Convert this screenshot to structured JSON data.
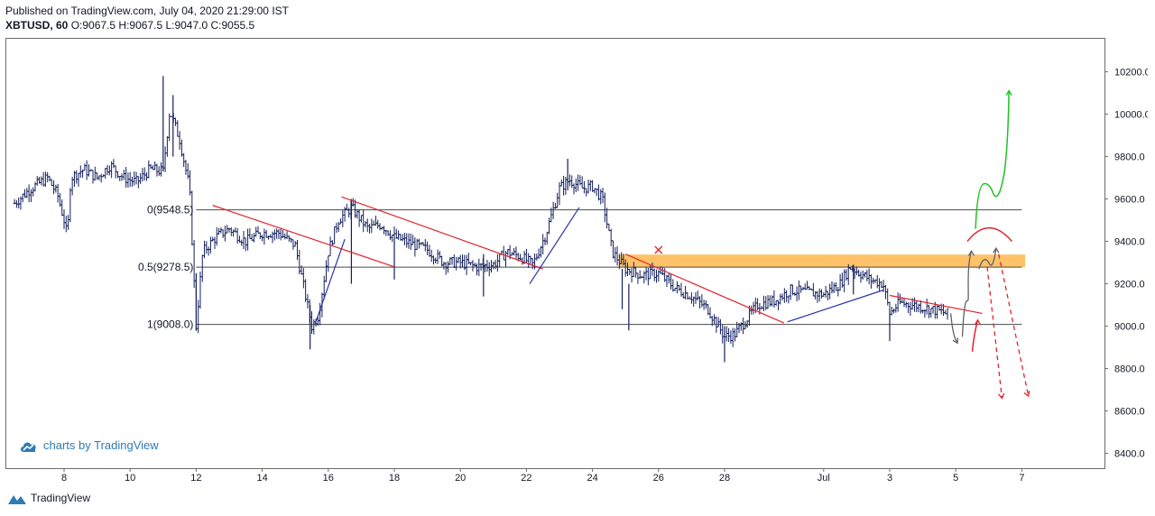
{
  "header": {
    "published": "Published on TradingView.com, July 04, 2020 21:29:00 IST",
    "symbol": "XBTUSD, 60",
    "ohlc": "O:9067.5 H:9067.5 L:9047.0 C:9055.5"
  },
  "watermark": {
    "text": "charts by TradingView"
  },
  "footer": {
    "brand": "TradingView"
  },
  "colors": {
    "candles": "#131f5c",
    "red_trend": "#e0252e",
    "blue_trend": "#2a36a8",
    "zone": "#ffb74d",
    "green_arrow": "#1fc21f",
    "gray_arrow": "#5f6368",
    "level_line": "#4a4a4a"
  },
  "chart_data": {
    "type": "candlestick",
    "x_ticks": [
      "8",
      "10",
      "12",
      "14",
      "16",
      "18",
      "20",
      "22",
      "24",
      "26",
      "28",
      "Jul",
      "3",
      "5",
      "7"
    ],
    "y_ticks": [
      "8400.0",
      "8600.0",
      "8800.0",
      "9000.0",
      "9200.0",
      "9400.0",
      "9600.0",
      "9800.0",
      "10000.0",
      "10200.0"
    ],
    "ylim": [
      8330,
      10360
    ],
    "fib_levels": [
      {
        "label": "0(9548.5)",
        "value": 9548.5
      },
      {
        "label": "0.5(9278.5)",
        "value": 9278.5
      },
      {
        "label": "1(9008.0)",
        "value": 9008.0
      }
    ],
    "price_path": [
      [
        6.5,
        9580
      ],
      [
        7.0,
        9650
      ],
      [
        7.5,
        9700
      ],
      [
        7.8,
        9620
      ],
      [
        8.0,
        9500
      ],
      [
        8.1,
        9420
      ],
      [
        8.2,
        9700
      ],
      [
        8.6,
        9740
      ],
      [
        9.0,
        9700
      ],
      [
        9.4,
        9760
      ],
      [
        9.8,
        9700
      ],
      [
        10.2,
        9680
      ],
      [
        10.6,
        9740
      ],
      [
        11.0,
        9730
      ],
      [
        11.2,
        10020
      ],
      [
        11.5,
        9880
      ],
      [
        11.8,
        9650
      ],
      [
        12.0,
        9000
      ],
      [
        12.2,
        9350
      ],
      [
        12.6,
        9420
      ],
      [
        13.0,
        9460
      ],
      [
        13.5,
        9400
      ],
      [
        14.0,
        9440
      ],
      [
        14.5,
        9440
      ],
      [
        15.0,
        9380
      ],
      [
        15.3,
        9150
      ],
      [
        15.5,
        9000
      ],
      [
        15.7,
        9050
      ],
      [
        16.0,
        9350
      ],
      [
        16.3,
        9500
      ],
      [
        16.7,
        9560
      ],
      [
        17.2,
        9460
      ],
      [
        17.6,
        9480
      ],
      [
        18.0,
        9420
      ],
      [
        18.5,
        9390
      ],
      [
        19.0,
        9360
      ],
      [
        19.5,
        9300
      ],
      [
        20.0,
        9300
      ],
      [
        20.5,
        9280
      ],
      [
        21.0,
        9290
      ],
      [
        21.4,
        9350
      ],
      [
        21.8,
        9330
      ],
      [
        22.2,
        9290
      ],
      [
        22.6,
        9440
      ],
      [
        23.0,
        9650
      ],
      [
        23.3,
        9690
      ],
      [
        23.7,
        9650
      ],
      [
        24.0,
        9660
      ],
      [
        24.3,
        9600
      ],
      [
        24.6,
        9350
      ],
      [
        25.0,
        9270
      ],
      [
        25.5,
        9240
      ],
      [
        26.0,
        9250
      ],
      [
        26.5,
        9180
      ],
      [
        27.0,
        9140
      ],
      [
        27.5,
        9080
      ],
      [
        28.0,
        8950
      ],
      [
        28.3,
        8960
      ],
      [
        28.7,
        9040
      ],
      [
        29.0,
        9100
      ],
      [
        29.5,
        9120
      ],
      [
        30.0,
        9170
      ],
      [
        30.5,
        9160
      ],
      [
        31.0,
        9150
      ],
      [
        31.5,
        9200
      ],
      [
        31.8,
        9280
      ],
      [
        32.0,
        9260
      ],
      [
        32.4,
        9220
      ],
      [
        32.8,
        9200
      ],
      [
        33.0,
        9060
      ],
      [
        33.3,
        9110
      ],
      [
        33.7,
        9100
      ],
      [
        34.0,
        9090
      ],
      [
        34.5,
        9070
      ],
      [
        34.8,
        9055.5
      ]
    ],
    "spikes": [
      [
        11.0,
        9730,
        10180
      ],
      [
        11.3,
        9800,
        10090
      ],
      [
        12.0,
        8980,
        9250
      ],
      [
        15.45,
        8890,
        9100
      ],
      [
        16.7,
        9200,
        9600
      ],
      [
        18.0,
        9220,
        9420
      ],
      [
        20.7,
        9140,
        9340
      ],
      [
        23.25,
        9640,
        9790
      ],
      [
        24.9,
        9080,
        9270
      ],
      [
        25.1,
        8980,
        9200
      ],
      [
        28.0,
        8830,
        9000
      ],
      [
        33.0,
        8930,
        9080
      ],
      [
        31.9,
        9150,
        9290
      ]
    ],
    "zone": {
      "x_from": 24.8,
      "x_to": 37.1,
      "y_from": 9278,
      "y_to": 9338
    },
    "trendlines": [
      {
        "color": "red",
        "points": [
          [
            12.5,
            9570
          ],
          [
            18.0,
            9280
          ]
        ]
      },
      {
        "color": "red",
        "points": [
          [
            16.4,
            9610
          ],
          [
            22.5,
            9270
          ]
        ]
      },
      {
        "color": "red",
        "points": [
          [
            25.0,
            9340
          ],
          [
            29.8,
            9015
          ]
        ]
      },
      {
        "color": "red",
        "points": [
          [
            33.0,
            9145
          ],
          [
            35.8,
            9060
          ]
        ]
      },
      {
        "color": "blue",
        "points": [
          [
            15.6,
            9010
          ],
          [
            16.5,
            9410
          ]
        ]
      },
      {
        "color": "blue",
        "points": [
          [
            22.1,
            9200
          ],
          [
            23.6,
            9560
          ]
        ]
      },
      {
        "color": "blue",
        "points": [
          [
            29.9,
            9020
          ],
          [
            32.8,
            9170
          ]
        ]
      }
    ],
    "marker_x": [
      26.0,
      9360
    ]
  }
}
